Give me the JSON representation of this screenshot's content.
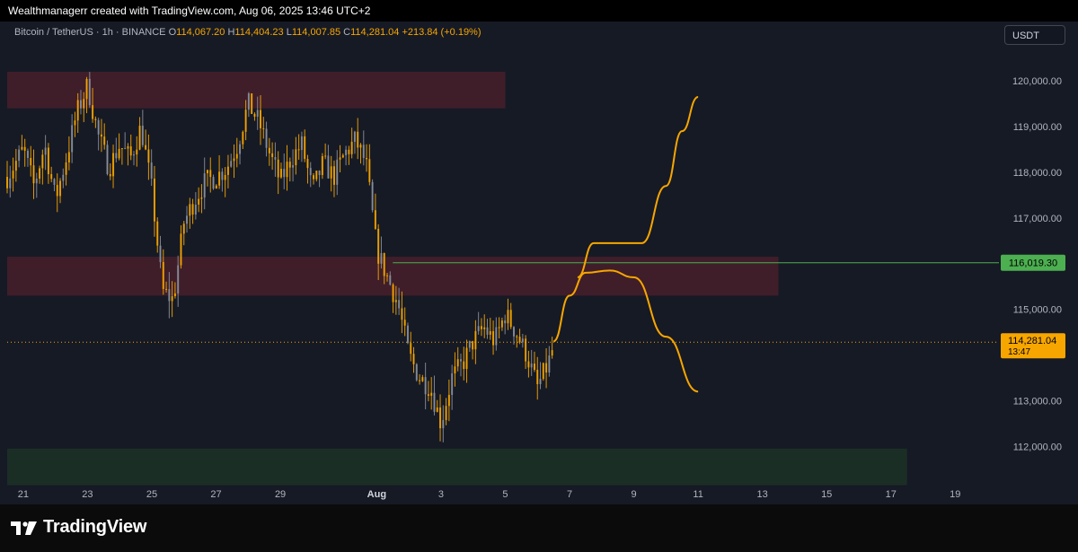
{
  "header": {
    "attribution": "Wealthmanagerr created with TradingView.com, Aug 06, 2025 13:46 UTC+2"
  },
  "legend": {
    "symbol": "Bitcoin / TetherUS · 1h · BINANCE",
    "open_label": "O",
    "open": "114,067.20",
    "high_label": "H",
    "high": "114,404.23",
    "low_label": "L",
    "low": "114,007.85",
    "close_label": "C",
    "close": "114,281.04",
    "change": "+213.84 (+0.19%)"
  },
  "currency_button": "USDT",
  "brand": {
    "name": "TradingView"
  },
  "colors": {
    "background": "#161a25",
    "candle": "#f7a600",
    "candle_alt": "#8a8f9c",
    "resistance_zone": "#4a1f2a",
    "support_zone": "#1c3326",
    "level_line": "#4caf50",
    "last_price": "#f7a600",
    "projection": "#f7a600"
  },
  "chart_data": {
    "type": "candlestick",
    "x_tick_labels": [
      "21",
      "23",
      "25",
      "27",
      "29",
      "Aug",
      "3",
      "5",
      "7",
      "9",
      "11",
      "13",
      "15",
      "17",
      "19"
    ],
    "x_tick_dates": [
      "2025-07-21",
      "2025-07-23",
      "2025-07-25",
      "2025-07-27",
      "2025-07-29",
      "2025-08-01",
      "2025-08-03",
      "2025-08-05",
      "2025-08-07",
      "2025-08-09",
      "2025-08-11",
      "2025-08-13",
      "2025-08-15",
      "2025-08-17",
      "2025-08-19"
    ],
    "y_tick_labels": [
      "120,000.00",
      "119,000.00",
      "118,000.00",
      "117,000.00",
      "115,000.00",
      "113,000.00",
      "112,000.00"
    ],
    "y_ticks": [
      120000,
      119000,
      118000,
      117000,
      115000,
      113000,
      112000
    ],
    "ylim": [
      111200,
      121300
    ],
    "xlim": [
      "2025-07-20T12:00",
      "2025-08-20T06:00"
    ],
    "price_path": [
      [
        "2025-07-20T12:00",
        117900
      ],
      [
        "2025-07-21T00:00",
        118500
      ],
      [
        "2025-07-21T08:00",
        117700
      ],
      [
        "2025-07-21T16:00",
        118600
      ],
      [
        "2025-07-22T00:00",
        117400
      ],
      [
        "2025-07-22T08:00",
        118300
      ],
      [
        "2025-07-22T16:00",
        119300
      ],
      [
        "2025-07-23T00:00",
        119900
      ],
      [
        "2025-07-23T08:00",
        118800
      ],
      [
        "2025-07-23T16:00",
        118100
      ],
      [
        "2025-07-24T00:00",
        118600
      ],
      [
        "2025-07-24T08:00",
        118300
      ],
      [
        "2025-07-24T16:00",
        119000
      ],
      [
        "2025-07-25T00:00",
        117600
      ],
      [
        "2025-07-25T08:00",
        115400
      ],
      [
        "2025-07-25T16:00",
        115200
      ],
      [
        "2025-07-26T00:00",
        116900
      ],
      [
        "2025-07-26T08:00",
        117400
      ],
      [
        "2025-07-26T16:00",
        117800
      ],
      [
        "2025-07-27T00:00",
        117900
      ],
      [
        "2025-07-27T08:00",
        118100
      ],
      [
        "2025-07-27T16:00",
        118600
      ],
      [
        "2025-07-28T00:00",
        119500
      ],
      [
        "2025-07-28T08:00",
        119100
      ],
      [
        "2025-07-28T16:00",
        118400
      ],
      [
        "2025-07-29T00:00",
        117800
      ],
      [
        "2025-07-29T08:00",
        118300
      ],
      [
        "2025-07-29T16:00",
        118600
      ],
      [
        "2025-07-30T00:00",
        117600
      ],
      [
        "2025-07-30T08:00",
        118200
      ],
      [
        "2025-07-30T16:00",
        117900
      ],
      [
        "2025-07-31T00:00",
        118400
      ],
      [
        "2025-07-31T08:00",
        118700
      ],
      [
        "2025-07-31T16:00",
        118200
      ],
      [
        "2025-08-01T00:00",
        116300
      ],
      [
        "2025-08-01T08:00",
        115700
      ],
      [
        "2025-08-01T16:00",
        115100
      ],
      [
        "2025-08-02T00:00",
        114000
      ],
      [
        "2025-08-02T08:00",
        113500
      ],
      [
        "2025-08-02T16:00",
        113300
      ],
      [
        "2025-08-03T00:00",
        112500
      ],
      [
        "2025-08-03T08:00",
        113500
      ],
      [
        "2025-08-03T16:00",
        113800
      ],
      [
        "2025-08-04T00:00",
        114300
      ],
      [
        "2025-08-04T08:00",
        114600
      ],
      [
        "2025-08-04T16:00",
        114300
      ],
      [
        "2025-08-05T00:00",
        114900
      ],
      [
        "2025-08-05T08:00",
        114500
      ],
      [
        "2025-08-05T16:00",
        114000
      ],
      [
        "2025-08-06T00:00",
        113300
      ],
      [
        "2025-08-06T08:00",
        113800
      ],
      [
        "2025-08-06T13:00",
        114281
      ]
    ],
    "zones": [
      {
        "kind": "resistance",
        "from": "2025-07-20T12:00",
        "to": "2025-08-05T00:00",
        "low": 119400,
        "high": 120200
      },
      {
        "kind": "resistance",
        "from": "2025-07-20T12:00",
        "to": "2025-08-13T12:00",
        "low": 115300,
        "high": 116150
      },
      {
        "kind": "support",
        "from": "2025-07-20T12:00",
        "to": "2025-08-17T12:00",
        "low": 111150,
        "high": 111950
      }
    ],
    "horizontal_level": {
      "from": "2025-08-01T12:00",
      "value": 116019.3,
      "label": "116,019.30"
    },
    "last_price": {
      "value": 114281.04,
      "label": "114,281.04",
      "countdown": "13:47"
    },
    "projections": [
      {
        "name": "bullish",
        "points": [
          [
            "2025-08-07T06:00",
            115700
          ],
          [
            "2025-08-07T18:00",
            116450
          ],
          [
            "2025-08-08T12:00",
            116450
          ],
          [
            "2025-08-09T06:00",
            116450
          ],
          [
            "2025-08-10T00:00",
            117700
          ],
          [
            "2025-08-10T12:00",
            118900
          ],
          [
            "2025-08-11T00:00",
            119650
          ]
        ]
      },
      {
        "name": "bearish",
        "points": [
          [
            "2025-08-06T12:00",
            114300
          ],
          [
            "2025-08-07T00:00",
            115300
          ],
          [
            "2025-08-07T12:00",
            115800
          ],
          [
            "2025-08-08T06:00",
            115850
          ],
          [
            "2025-08-09T00:00",
            115700
          ],
          [
            "2025-08-10T00:00",
            114400
          ],
          [
            "2025-08-11T00:00",
            113200
          ]
        ]
      }
    ]
  }
}
